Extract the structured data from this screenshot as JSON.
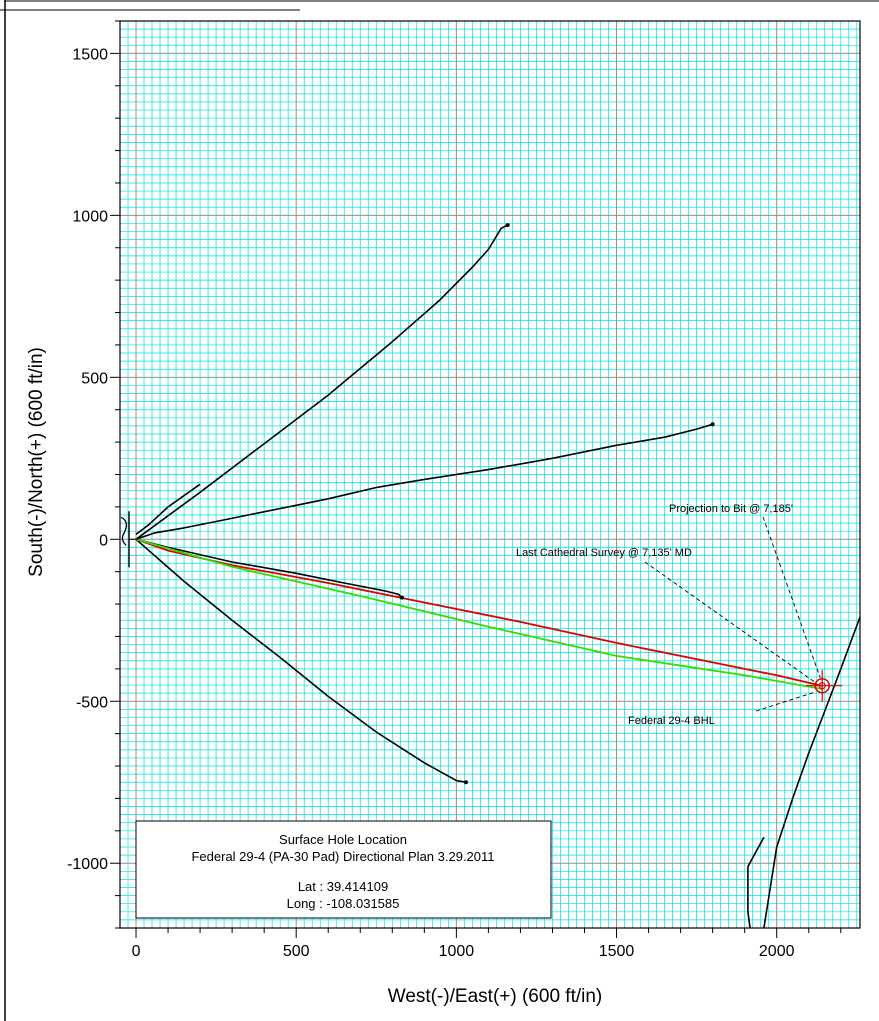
{
  "chart_data": {
    "type": "line",
    "title": "",
    "xlabel": "West(-)/East(+) (600 ft/in)",
    "ylabel": "South(-)/North(+) (600 ft/in)",
    "xlim": [
      -50,
      2260
    ],
    "ylim": [
      -1200,
      1600
    ],
    "xticks": [
      0,
      500,
      1000,
      1500,
      2000
    ],
    "yticks": [
      1500,
      1000,
      500,
      0,
      -500,
      -1000
    ],
    "xtick_labels": [
      "0",
      "500",
      "1000",
      "1500",
      "2000"
    ],
    "ytick_labels": [
      "1500",
      "1000",
      "500",
      "0",
      "-500",
      "-1000"
    ],
    "grid": true,
    "colors": {
      "minor_grid": "#00e5e5",
      "major_grid": "#909090",
      "well_paths": "#000000",
      "actual_survey": "#e00000",
      "plan": "#33dd00",
      "target": "#e00000",
      "annotation": "#000000"
    },
    "series": [
      {
        "color": "#000000",
        "x": [
          0,
          200,
          400,
          600,
          800,
          950,
          1050,
          1100,
          1140,
          1160
        ],
        "y": [
          0,
          145,
          295,
          445,
          610,
          740,
          840,
          895,
          960,
          970
        ]
      },
      {
        "color": "#000000",
        "x": [
          0,
          40,
          100,
          200
        ],
        "y": [
          15,
          45,
          100,
          170
        ]
      },
      {
        "color": "#000000",
        "x": [
          0,
          60,
          150,
          250,
          350,
          500,
          600,
          750,
          900,
          1100,
          1300,
          1500,
          1650,
          1750,
          1800
        ],
        "y": [
          0,
          20,
          35,
          55,
          75,
          105,
          125,
          160,
          185,
          215,
          250,
          290,
          315,
          340,
          355
        ]
      },
      {
        "color": "#000000",
        "x": [
          0,
          100,
          300,
          500,
          650,
          780,
          820,
          830
        ],
        "y": [
          0,
          -25,
          -70,
          -105,
          -135,
          -160,
          -170,
          -180
        ]
      },
      {
        "color": "#000000",
        "x": [
          0,
          150,
          300,
          450,
          600,
          750,
          900,
          1000,
          1030
        ],
        "y": [
          0,
          -130,
          -250,
          -365,
          -485,
          -595,
          -690,
          -745,
          -750
        ]
      },
      {
        "color": "#000000",
        "x": [
          2260,
          2200,
          2150,
          2100,
          2050,
          2000,
          1960
        ],
        "y": [
          -240,
          -400,
          -530,
          -660,
          -800,
          -950,
          -1200
        ]
      },
      {
        "color": "#000000",
        "x": [
          1910,
          1910,
          1917
        ],
        "y": [
          -1010,
          -1150,
          -1200
        ]
      },
      {
        "color": "#000000",
        "x": [
          1910,
          1960
        ],
        "y": [
          -1010,
          -920
        ]
      },
      {
        "color": "#e00000",
        "x": [
          0,
          100,
          300,
          600,
          900,
          1200,
          1500,
          1800,
          2000,
          2140
        ],
        "y": [
          0,
          -35,
          -80,
          -135,
          -195,
          -255,
          -320,
          -380,
          -420,
          -452
        ]
      },
      {
        "color": "#33dd00",
        "x": [
          0,
          300,
          700,
          1100,
          1500,
          1900,
          2140
        ],
        "y": [
          0,
          -85,
          -175,
          -270,
          -360,
          -420,
          -462
        ]
      }
    ],
    "markers": [
      {
        "x": 2142,
        "y": -452
      }
    ],
    "annotations": [
      {
        "text": "Projection to Bit @ 7,185'",
        "x": 2142,
        "y": -452
      },
      {
        "text": "Last Cathedral Survey @ 7,135' MD",
        "x": 2138,
        "y": -448
      },
      {
        "text": "Federal 29-4 BHL",
        "x": 2142,
        "y": -460
      }
    ],
    "legend_box": {
      "title": "Surface Hole Location",
      "subtitle": "Federal 29-4 (PA-30 Pad) Directional Plan 3.29.2011",
      "lat_label": "Lat : 39.414109",
      "long_label": "Long : -108.031585"
    }
  }
}
